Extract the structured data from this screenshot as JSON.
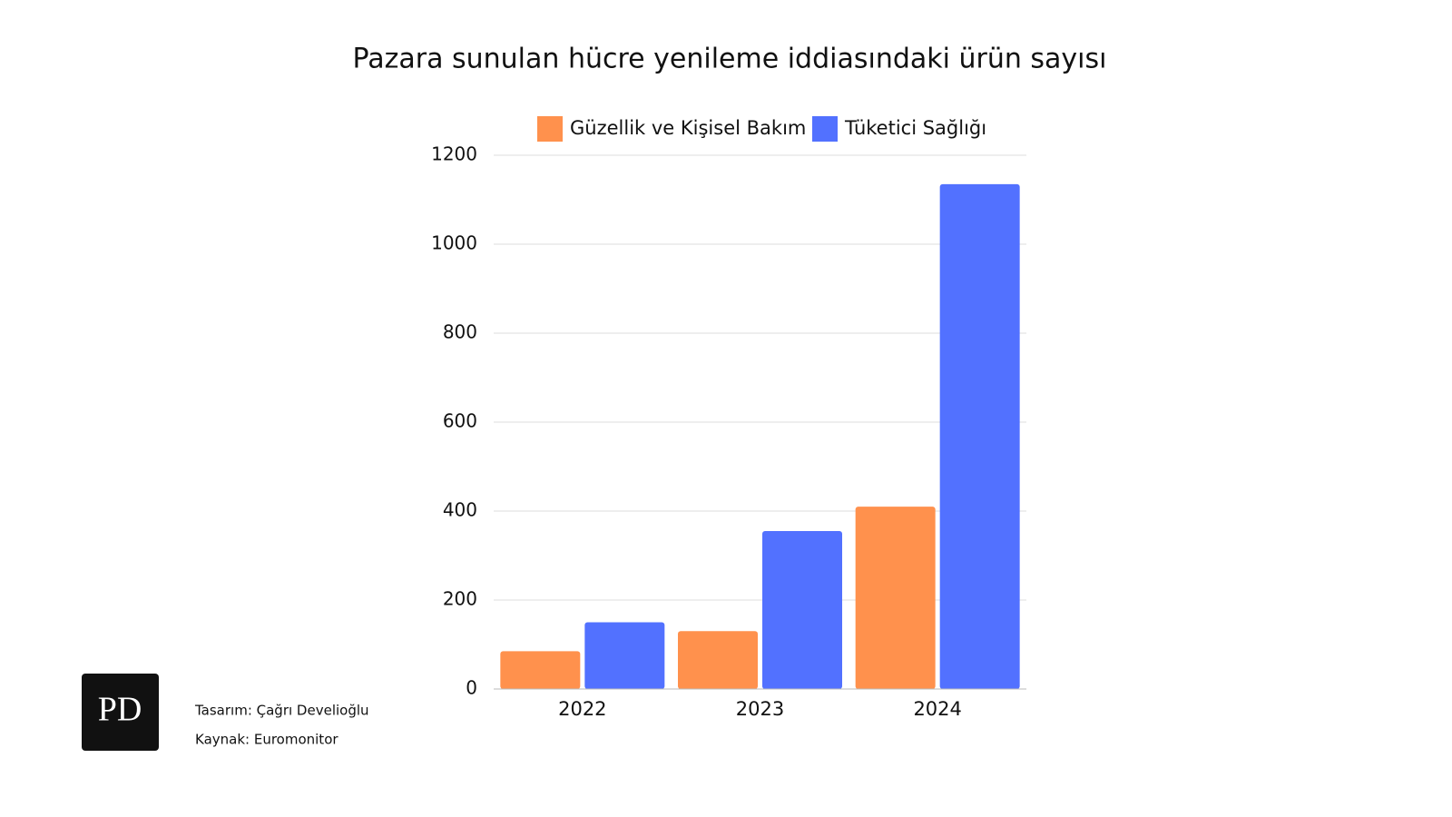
{
  "chart_data": {
    "type": "bar",
    "title": "Pazara sunulan hücre yenileme iddiasındaki ürün sayısı",
    "categories": [
      "2022",
      "2023",
      "2024"
    ],
    "series": [
      {
        "name": "Güzellik ve Kişisel Bakım",
        "color": "#ff914d",
        "values": [
          85,
          130,
          410
        ]
      },
      {
        "name": "Tüketici Sağlığı",
        "color": "#5271ff",
        "values": [
          150,
          355,
          1135
        ]
      }
    ],
    "ylim": [
      0,
      1200
    ],
    "yticks": [
      0,
      200,
      400,
      600,
      800,
      1000,
      1200
    ],
    "grid": true
  },
  "footer": {
    "logo": "PD",
    "credit": "Tasarım: Çağrı Develioğlu",
    "source": "Kaynak: Euromonitor"
  }
}
